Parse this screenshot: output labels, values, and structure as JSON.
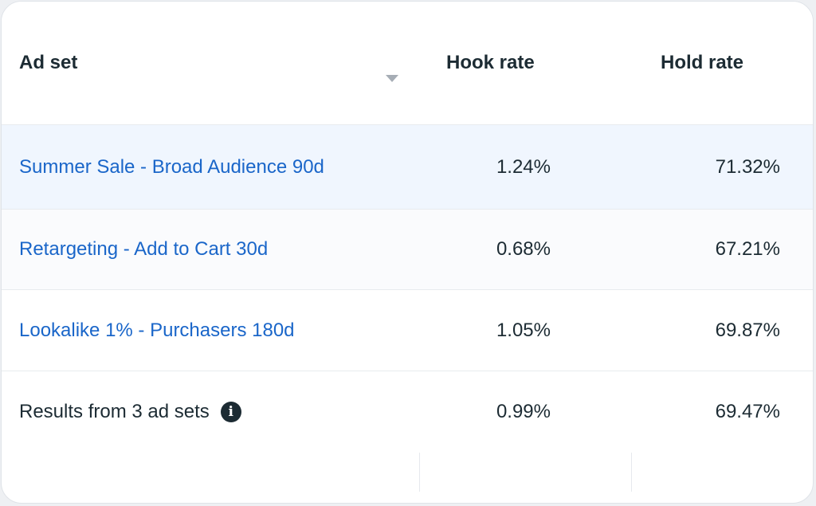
{
  "table": {
    "headers": {
      "ad_set": "Ad set",
      "hook_rate": "Hook rate",
      "hold_rate": "Hold rate"
    },
    "rows": [
      {
        "name": "Summer Sale - Broad Audience 90d",
        "hook_rate": "1.24%",
        "hold_rate": "71.32%"
      },
      {
        "name": "Retargeting - Add to Cart 30d",
        "hook_rate": "0.68%",
        "hold_rate": "67.21%"
      },
      {
        "name": "Lookalike 1% - Purchasers 180d",
        "hook_rate": "1.05%",
        "hold_rate": "69.87%"
      }
    ],
    "summary": {
      "label": "Results from 3 ad sets",
      "hook_rate": "0.99%",
      "hold_rate": "69.47%",
      "info_icon": "info-icon",
      "info_glyph": "i"
    },
    "sort_icon": "caret-down-icon"
  },
  "colors": {
    "link": "#1a66c9",
    "selected_row": "#f0f6fe",
    "text": "#1c2b33"
  }
}
